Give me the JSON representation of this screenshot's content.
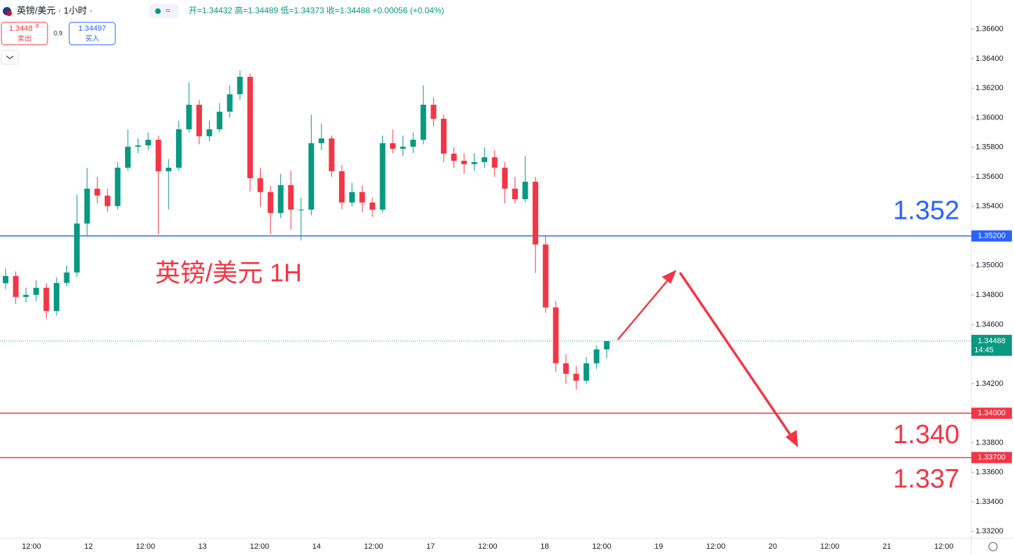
{
  "header": {
    "symbol": "英镑/美元 · 1小时 ·",
    "ohlc_text": "开=1.34432 高=1.34489 低=1.34373 收=1.34488 +0.00056 (+0.04%)",
    "sell_price": "1.3448",
    "sell_price_sup": "8",
    "sell_label": "卖出",
    "spread": "0.9",
    "buy_price": "1.34497",
    "buy_label": "买入"
  },
  "chart_data": {
    "type": "candlestick",
    "title": "英镑/美元 1H",
    "up_color": "#089981",
    "down_color": "#f23645",
    "open": [
      1.3488,
      1.34929,
      1.34787,
      1.34801,
      1.34849,
      1.34692,
      1.34882,
      1.34953,
      1.35284,
      1.3552,
      1.35473,
      1.35402,
      1.35662,
      1.35804,
      1.35813,
      1.35851,
      1.35638,
      1.35662,
      1.35922,
      1.36088,
      1.35875,
      1.35922,
      1.36041,
      1.36159,
      1.36277,
      1.35591,
      1.35497,
      1.35355,
      1.35544,
      1.35378,
      1.35378,
      1.35828,
      1.3586,
      1.35638,
      1.35426,
      1.35497,
      1.35426,
      1.35378,
      1.35828,
      1.3579,
      1.35804,
      1.35851,
      1.36088,
      1.35993,
      1.35757,
      1.35709,
      1.35686,
      1.357,
      1.35733,
      1.35662,
      1.3552,
      1.35449,
      1.35567,
      1.35142,
      1.34716,
      1.34338,
      1.34267,
      1.3422,
      1.34338,
      1.34432
    ],
    "high": [
      1.3498,
      1.3496,
      1.3485,
      1.349,
      1.3488,
      1.3492,
      1.35,
      1.3548,
      1.3566,
      1.356,
      1.3552,
      1.357,
      1.3592,
      1.3586,
      1.359,
      1.3588,
      1.3572,
      1.3598,
      1.3624,
      1.3612,
      1.3598,
      1.361,
      1.3622,
      1.3632,
      1.363,
      1.3566,
      1.3554,
      1.3562,
      1.3564,
      1.3546,
      1.3602,
      1.3596,
      1.3588,
      1.3568,
      1.3556,
      1.3554,
      1.3546,
      1.3588,
      1.3592,
      1.3588,
      1.359,
      1.3622,
      1.3614,
      1.3602,
      1.358,
      1.3576,
      1.3576,
      1.358,
      1.3578,
      1.357,
      1.356,
      1.3574,
      1.356,
      1.352,
      1.3476,
      1.344,
      1.3432,
      1.3438,
      1.3446,
      1.34489
    ],
    "low": [
      1.3484,
      1.3474,
      1.3475,
      1.3476,
      1.3464,
      1.3466,
      1.3486,
      1.3492,
      1.352,
      1.3542,
      1.3536,
      1.3538,
      1.3564,
      1.3576,
      1.3578,
      1.3521,
      1.3538,
      1.3564,
      1.359,
      1.3582,
      1.3584,
      1.359,
      1.36,
      1.3612,
      1.355,
      1.354,
      1.3521,
      1.3532,
      1.3524,
      1.3517,
      1.3534,
      1.3578,
      1.356,
      1.3538,
      1.354,
      1.3536,
      1.3533,
      1.3536,
      1.3576,
      1.3574,
      1.3576,
      1.3582,
      1.3594,
      1.357,
      1.3566,
      1.3562,
      1.3564,
      1.3566,
      1.356,
      1.3542,
      1.3542,
      1.3543,
      1.3495,
      1.3468,
      1.3428,
      1.342,
      1.3416,
      1.342,
      1.343,
      1.34373
    ],
    "close": [
      1.34929,
      1.34787,
      1.34801,
      1.34849,
      1.34692,
      1.34882,
      1.34953,
      1.35284,
      1.3552,
      1.35473,
      1.35402,
      1.35662,
      1.35804,
      1.35813,
      1.35851,
      1.35638,
      1.35662,
      1.35922,
      1.36088,
      1.35875,
      1.35922,
      1.36041,
      1.36159,
      1.36277,
      1.35591,
      1.35497,
      1.35355,
      1.35544,
      1.35378,
      1.35378,
      1.35828,
      1.3586,
      1.35638,
      1.35426,
      1.35497,
      1.35426,
      1.35378,
      1.35828,
      1.3579,
      1.35804,
      1.35851,
      1.36088,
      1.35993,
      1.35757,
      1.35709,
      1.35686,
      1.357,
      1.35733,
      1.35662,
      1.3552,
      1.35449,
      1.35567,
      1.35142,
      1.34716,
      1.34338,
      1.34267,
      1.3422,
      1.34338,
      1.34432,
      1.34488
    ],
    "ylim": [
      1.33154,
      1.36797
    ],
    "yticks": [
      {
        "value": 1.332,
        "label": "1.33200"
      },
      {
        "value": 1.334,
        "label": "1.33400"
      },
      {
        "value": 1.336,
        "label": "1.33600"
      },
      {
        "value": 1.338,
        "label": "1.33800"
      },
      {
        "value": 1.342,
        "label": "1.34200"
      },
      {
        "value": 1.346,
        "label": "1.34600"
      },
      {
        "value": 1.348,
        "label": "1.34800"
      },
      {
        "value": 1.35,
        "label": "1.35000"
      },
      {
        "value": 1.354,
        "label": "1.35400"
      },
      {
        "value": 1.356,
        "label": "1.35600"
      },
      {
        "value": 1.358,
        "label": "1.35800"
      },
      {
        "value": 1.36,
        "label": "1.36000"
      },
      {
        "value": 1.362,
        "label": "1.36200"
      },
      {
        "value": 1.364,
        "label": "1.36400"
      },
      {
        "value": 1.366,
        "label": "1.36600"
      }
    ],
    "xtick_labels": [
      "12:00",
      "12",
      "12:00",
      "13",
      "12:00",
      "14",
      "12:00",
      "17",
      "12:00",
      "18",
      "12:00",
      "19",
      "12:00",
      "20",
      "12:00",
      "21",
      "12:00"
    ],
    "hlines": [
      {
        "value": 1.352,
        "label": "1.35200",
        "note": "1.352",
        "color": "#2962ff"
      },
      {
        "value": 1.34,
        "label": "1.34000",
        "note": "1.340",
        "color": "#f23645"
      },
      {
        "value": 1.337,
        "label": "1.33700",
        "note": "1.337",
        "color": "#f23645"
      }
    ],
    "last_price": {
      "value": 1.34488,
      "label": "1.34488",
      "countdown": "14:45",
      "color": "#089981"
    }
  }
}
